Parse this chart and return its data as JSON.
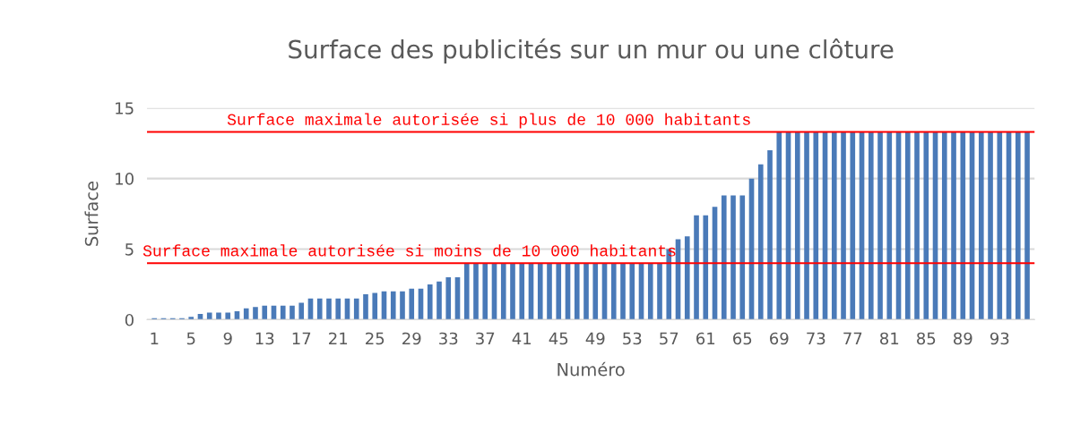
{
  "chart_data": {
    "type": "bar",
    "title": "Surface des publicités sur un mur ou une clôture",
    "xlabel": "Numéro",
    "ylabel": "Surface",
    "categories": [
      "1",
      null,
      null,
      null,
      "5",
      null,
      null,
      null,
      "9",
      null,
      null,
      null,
      "13",
      null,
      null,
      null,
      "17",
      null,
      null,
      null,
      "21",
      null,
      null,
      null,
      "25",
      null,
      null,
      null,
      "29",
      null,
      null,
      null,
      "33",
      null,
      null,
      null,
      "37",
      null,
      null,
      null,
      "41",
      null,
      null,
      null,
      "45",
      null,
      null,
      null,
      "49",
      null,
      null,
      null,
      "53",
      null,
      null,
      null,
      "57",
      null,
      null,
      null,
      "61",
      null,
      null,
      null,
      "65",
      null,
      null,
      null,
      "69",
      null,
      null,
      null,
      "73",
      null,
      null,
      null,
      "77",
      null,
      null,
      null,
      "81",
      null,
      null,
      null,
      "85",
      null,
      null,
      null,
      "89",
      null,
      null,
      null,
      "93",
      null,
      null,
      null
    ],
    "values": [
      0.1,
      0.1,
      0.1,
      0.1,
      0.2,
      0.4,
      0.5,
      0.5,
      0.5,
      0.6,
      0.8,
      0.9,
      1.0,
      1.0,
      1.0,
      1.0,
      1.2,
      1.5,
      1.5,
      1.5,
      1.5,
      1.5,
      1.5,
      1.8,
      1.9,
      2.0,
      2.0,
      2.0,
      2.2,
      2.2,
      2.5,
      2.7,
      3.0,
      3.0,
      4.0,
      4.0,
      4.0,
      4.0,
      4.0,
      4.0,
      4.0,
      4.0,
      4.0,
      4.0,
      4.0,
      4.0,
      4.0,
      4.0,
      4.0,
      4.0,
      4.0,
      4.0,
      4.0,
      4.0,
      4.0,
      4.0,
      5.0,
      5.7,
      5.9,
      7.4,
      7.4,
      8.0,
      8.8,
      8.8,
      8.8,
      10.0,
      11.0,
      12.0,
      13.3,
      13.3,
      13.3,
      13.3,
      13.3,
      13.3,
      13.3,
      13.3,
      13.3,
      13.3,
      13.3,
      13.3,
      13.3,
      13.3,
      13.3,
      13.3,
      13.3,
      13.3,
      13.3,
      13.3,
      13.3,
      13.3,
      13.3,
      13.3,
      13.3,
      13.3,
      13.3,
      13.3
    ],
    "color": "#4a7ab8",
    "ylim": [
      0,
      15
    ],
    "yticks": [
      0,
      5,
      10,
      15
    ],
    "grid": "y",
    "ref_lines": [
      {
        "axis": "y",
        "value": 13.3,
        "label": "Surface maximale autorisée si plus de 10 000 habitants",
        "color": "#ff0000"
      },
      {
        "axis": "y",
        "value": 4,
        "label": "Surface maximale autorisée si moins de 10 000 habitants",
        "color": "#ff0000"
      }
    ]
  }
}
